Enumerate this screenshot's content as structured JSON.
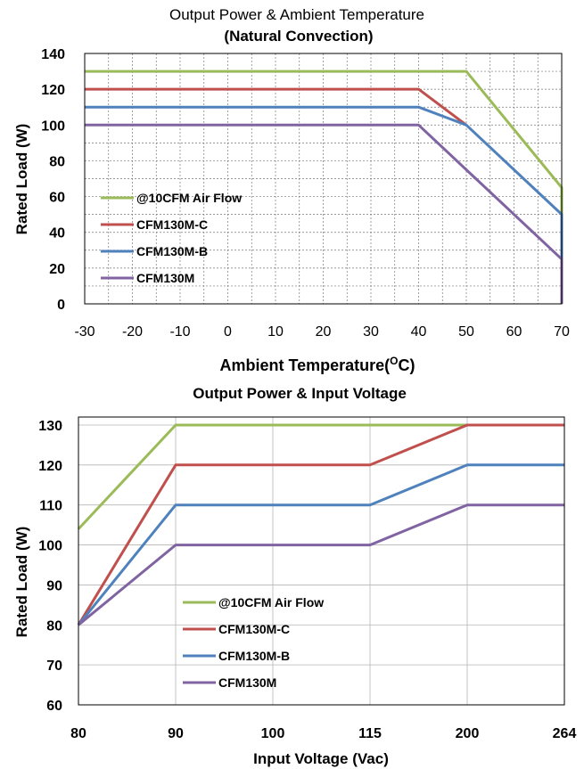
{
  "chart_data": [
    {
      "type": "line",
      "title": "Output Power & Ambient Temperature",
      "subtitle": "(Natural Convection)",
      "xlabel": "Ambient Temperature(",
      "xlabel_sup": "O",
      "xlabel_suffix": "C)",
      "ylabel": "Rated  Load (W)",
      "x_ticks": [
        "-30",
        "-20",
        "-10",
        "0",
        "10",
        "20",
        "30",
        "40",
        "50",
        "60",
        "70"
      ],
      "y_ticks": [
        "0",
        "20",
        "40",
        "60",
        "80",
        "100",
        "120",
        "140"
      ],
      "xlim": [
        -30,
        70
      ],
      "ylim": [
        0,
        140
      ],
      "grid": true,
      "legend_position": "lower-left",
      "series": [
        {
          "name": "@10CFM Air Flow",
          "color": "#9bbb59",
          "points": [
            [
              -30,
              130
            ],
            [
              50,
              130
            ],
            [
              70,
              65
            ],
            [
              70,
              50
            ]
          ]
        },
        {
          "name": "CFM130M-C",
          "color": "#c0504d",
          "points": [
            [
              -30,
              120
            ],
            [
              40,
              120
            ],
            [
              50,
              100
            ]
          ]
        },
        {
          "name": "CFM130M-B",
          "color": "#4f81bd",
          "points": [
            [
              -30,
              110
            ],
            [
              40,
              110
            ],
            [
              50,
              100
            ],
            [
              70,
              50
            ],
            [
              70,
              25
            ]
          ]
        },
        {
          "name": "CFM130M",
          "color": "#8064a2",
          "points": [
            [
              -30,
              100
            ],
            [
              40,
              100
            ],
            [
              70,
              25
            ],
            [
              70,
              0
            ]
          ]
        }
      ]
    },
    {
      "type": "line",
      "title": "Output Power & Input  Voltage",
      "xlabel": "Input  Voltage (Vac)",
      "ylabel": "Rated  Load  (W)",
      "categories": [
        "80",
        "90",
        "100",
        "115",
        "200",
        "264"
      ],
      "y_ticks": [
        "60",
        "70",
        "80",
        "90",
        "100",
        "110",
        "120",
        "130"
      ],
      "ylim": [
        60,
        132
      ],
      "grid": true,
      "legend_position": "lower-center",
      "series": [
        {
          "name": "@10CFM Air Flow",
          "color": "#9bbb59",
          "values": [
            104,
            130,
            130,
            130,
            130,
            130
          ]
        },
        {
          "name": "CFM130M-C",
          "color": "#c0504d",
          "values": [
            80,
            120,
            120,
            120,
            130,
            130
          ]
        },
        {
          "name": "CFM130M-B",
          "color": "#4f81bd",
          "values": [
            80,
            110,
            110,
            110,
            120,
            120
          ]
        },
        {
          "name": "CFM130M",
          "color": "#8064a2",
          "values": [
            80,
            100,
            100,
            100,
            110,
            110
          ]
        }
      ]
    }
  ]
}
